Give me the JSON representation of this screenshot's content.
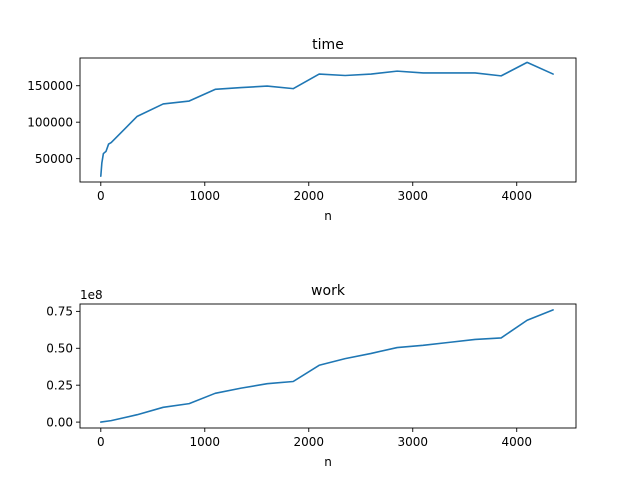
{
  "chart_data": [
    {
      "type": "line",
      "title": "time",
      "xlabel": "n",
      "ylabel": "",
      "color": "#1f77b4",
      "xlim": [
        -200,
        4570
      ],
      "ylim": [
        18000,
        188000
      ],
      "xticks": [
        0,
        1000,
        2000,
        3000,
        4000
      ],
      "xtick_labels": [
        "0",
        "1000",
        "2000",
        "3000",
        "4000"
      ],
      "yticks": [
        50000,
        100000,
        150000
      ],
      "ytick_labels": [
        "50000",
        "100000",
        "150000"
      ],
      "offset_label": "",
      "x": [
        0,
        10,
        25,
        50,
        75,
        100,
        350,
        600,
        850,
        1100,
        1350,
        1600,
        1850,
        2100,
        2350,
        2600,
        2850,
        3100,
        3350,
        3600,
        3850,
        4100,
        4350
      ],
      "values": [
        26000,
        44000,
        57000,
        60000,
        70000,
        72000,
        108000,
        125000,
        129000,
        145000,
        147500,
        149500,
        146000,
        166000,
        164000,
        166000,
        170000,
        167500,
        167500,
        167500,
        163500,
        182000,
        166000
      ]
    },
    {
      "type": "line",
      "title": "work",
      "xlabel": "n",
      "ylabel": "",
      "color": "#1f77b4",
      "xlim": [
        -200,
        4570
      ],
      "ylim": [
        -0.04,
        0.8
      ],
      "xticks": [
        0,
        1000,
        2000,
        3000,
        4000
      ],
      "xtick_labels": [
        "0",
        "1000",
        "2000",
        "3000",
        "4000"
      ],
      "yticks": [
        0.0,
        0.25,
        0.5,
        0.75
      ],
      "ytick_labels": [
        "0.00",
        "0.25",
        "0.50",
        "0.75"
      ],
      "offset_label": "1e8",
      "x": [
        0,
        100,
        350,
        600,
        850,
        1100,
        1350,
        1600,
        1850,
        2100,
        2350,
        2600,
        2850,
        3100,
        3350,
        3600,
        3850,
        4100,
        4350
      ],
      "values": [
        0.0,
        0.01,
        0.05,
        0.1,
        0.125,
        0.195,
        0.23,
        0.26,
        0.275,
        0.385,
        0.43,
        0.465,
        0.505,
        0.52,
        0.54,
        0.56,
        0.57,
        0.69,
        0.76
      ]
    }
  ]
}
